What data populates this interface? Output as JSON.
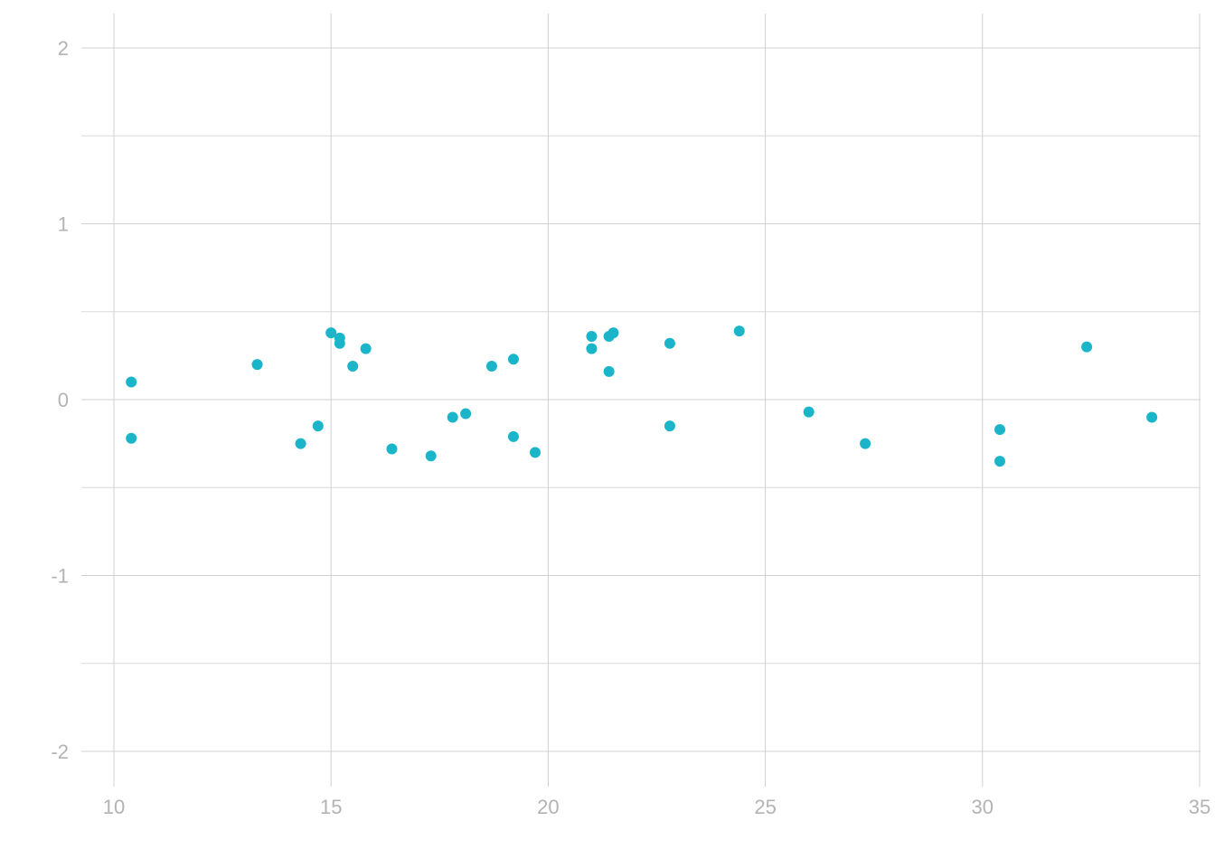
{
  "chart_data": {
    "type": "scatter",
    "title": "",
    "xlabel": "",
    "ylabel": "",
    "xlim": [
      10,
      35
    ],
    "ylim": [
      -2.2,
      2.2
    ],
    "x_ticks": [
      10,
      15,
      20,
      25,
      30,
      35
    ],
    "x_tick_labels": [
      "10",
      "15",
      "20",
      "25",
      "30",
      "35"
    ],
    "y_ticks": [
      -2,
      -1,
      0,
      1,
      2
    ],
    "y_tick_labels": [
      "-2",
      "-1",
      "0",
      "1",
      "2"
    ],
    "y_minor_ticks": [
      -1.5,
      -0.5,
      0.5,
      1.5
    ],
    "grid": true,
    "legend": "none",
    "point_color": "#1bb5c9",
    "points": [
      {
        "x": 10.4,
        "y": 0.1
      },
      {
        "x": 10.4,
        "y": -0.22
      },
      {
        "x": 13.3,
        "y": 0.2
      },
      {
        "x": 14.3,
        "y": -0.25
      },
      {
        "x": 14.7,
        "y": -0.15
      },
      {
        "x": 15.0,
        "y": 0.38
      },
      {
        "x": 15.2,
        "y": 0.35
      },
      {
        "x": 15.2,
        "y": 0.32
      },
      {
        "x": 15.5,
        "y": 0.19
      },
      {
        "x": 15.8,
        "y": 0.29
      },
      {
        "x": 16.4,
        "y": -0.28
      },
      {
        "x": 17.3,
        "y": -0.32
      },
      {
        "x": 17.8,
        "y": -0.1
      },
      {
        "x": 18.1,
        "y": -0.08
      },
      {
        "x": 18.7,
        "y": 0.19
      },
      {
        "x": 19.2,
        "y": 0.23
      },
      {
        "x": 19.2,
        "y": -0.21
      },
      {
        "x": 19.7,
        "y": -0.3
      },
      {
        "x": 21.0,
        "y": 0.36
      },
      {
        "x": 21.0,
        "y": 0.29
      },
      {
        "x": 21.4,
        "y": 0.36
      },
      {
        "x": 21.4,
        "y": 0.16
      },
      {
        "x": 21.5,
        "y": 0.38
      },
      {
        "x": 22.8,
        "y": 0.32
      },
      {
        "x": 22.8,
        "y": -0.15
      },
      {
        "x": 24.4,
        "y": 0.39
      },
      {
        "x": 26.0,
        "y": -0.07
      },
      {
        "x": 27.3,
        "y": -0.25
      },
      {
        "x": 30.4,
        "y": -0.17
      },
      {
        "x": 30.4,
        "y": -0.35
      },
      {
        "x": 32.4,
        "y": 0.3
      },
      {
        "x": 33.9,
        "y": -0.1
      }
    ]
  }
}
